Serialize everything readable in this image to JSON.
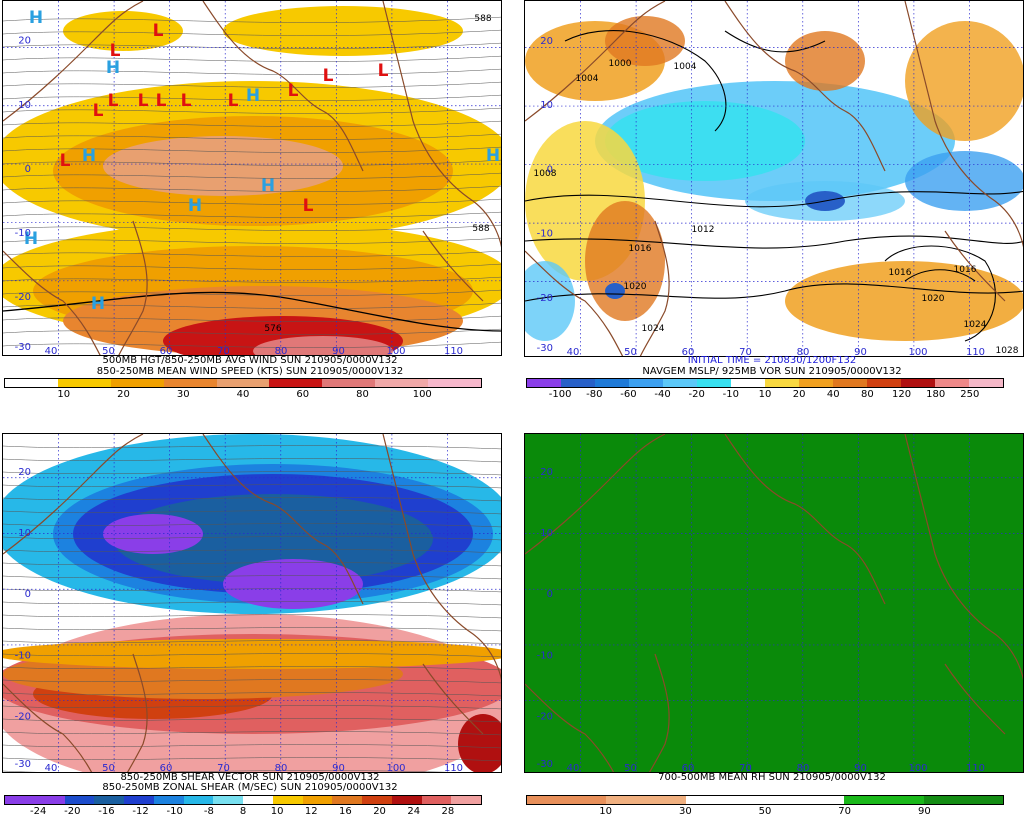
{
  "panels": [
    {
      "id": "p1",
      "caption_lines": [
        "500MB HGT/850-250MB AVG WIND SUN 210905/0000V132",
        "850-250MB MEAN WIND SPEED (KTS) SUN 210905/0000V132"
      ],
      "legend_colors": [
        "#ffffff",
        "#ffffff",
        "#f7c900",
        "#f7c900",
        "#f0a000",
        "#f0a000",
        "#e8852f",
        "#e8852f",
        "#e8a070",
        "#e8a070",
        "#c81414",
        "#c81414",
        "#e07878",
        "#e07878",
        "#f0a8a8",
        "#f0a8a8",
        "#f7b8cc",
        "#f7b8cc"
      ],
      "legend_ticks": [
        "10",
        "20",
        "30",
        "40",
        "60",
        "80",
        "100"
      ],
      "lat_labels": [
        "20",
        "10",
        "0",
        "-10",
        "-20",
        "-30"
      ],
      "lon_labels": [
        "40",
        "50",
        "60",
        "70",
        "80",
        "90",
        "100",
        "110"
      ],
      "contour_labels": [
        "588",
        "588",
        "576"
      ],
      "H_count": 9,
      "L_count": 13,
      "symbols": {
        "H": "H",
        "L": "L"
      }
    },
    {
      "id": "p2",
      "caption_lines": [
        "INITIAL TIME = 210830/1200F132",
        "NAVGEM MSLP/ 925MB VOR SUN 210905/0000V132"
      ],
      "legend_colors": [
        "#8a3ee8",
        "#2860c8",
        "#1f7ad8",
        "#3ca0f0",
        "#5cc8f8",
        "#38e0f0",
        "#ffffff",
        "#f8d840",
        "#f0a020",
        "#e07820",
        "#d04010",
        "#b01010",
        "#ee8888",
        "#f5b8c8"
      ],
      "legend_ticks": [
        "-100",
        "-80",
        "-60",
        "-40",
        "-20",
        "-10",
        "10",
        "20",
        "40",
        "80",
        "120",
        "180",
        "250"
      ],
      "lat_labels": [
        "20",
        "10",
        "0",
        "-10",
        "-20",
        "-30"
      ],
      "lon_labels": [
        "40",
        "50",
        "60",
        "70",
        "80",
        "90",
        "100",
        "110"
      ],
      "contour_labels": [
        "1004",
        "1000",
        "1004",
        "1008",
        "1016",
        "1012",
        "1016",
        "1020",
        "1024",
        "1016",
        "1020",
        "1024",
        "1028"
      ]
    },
    {
      "id": "p3",
      "caption_lines": [
        "850-250MB SHEAR VECTOR SUN 210905/0000V132",
        "850-250MB ZONAL SHEAR (M/SEC) SUN 210905/0000V132"
      ],
      "legend_colors": [
        "#8a3ee8",
        "#8a3ee8",
        "#1c4ccc",
        "#1a5fa0",
        "#1f3fcf",
        "#1c82e0",
        "#27b8e8",
        "#78e0f0",
        "#ffffff",
        "#f7c900",
        "#f0a000",
        "#e07820",
        "#d04010",
        "#b01010",
        "#e06060",
        "#f0a0a0"
      ],
      "legend_ticks": [
        "-24",
        "-20",
        "-16",
        "-12",
        "-10",
        "-8",
        "8",
        "10",
        "12",
        "16",
        "20",
        "24",
        "28"
      ],
      "lat_labels": [
        "20",
        "10",
        "0",
        "-10",
        "-20",
        "-30"
      ],
      "lon_labels": [
        "40",
        "50",
        "60",
        "70",
        "80",
        "90",
        "100",
        "110"
      ]
    },
    {
      "id": "p4",
      "caption_lines": [
        "700-500MB MEAN RH SUN 210905/0000V132"
      ],
      "legend_colors": [
        "#e8905a",
        "#e8905a",
        "#f0b080",
        "#f0b080",
        "#ffffff",
        "#ffffff",
        "#ffffff",
        "#ffffff",
        "#1ab81a",
        "#1ab81a",
        "#138c13",
        "#138c13"
      ],
      "legend_ticks": [
        "10",
        "30",
        "50",
        "70",
        "90"
      ],
      "lat_labels": [
        "20",
        "10",
        "0",
        "-10",
        "-20",
        "-30"
      ],
      "lon_labels": [
        "40",
        "50",
        "60",
        "70",
        "80",
        "90",
        "100",
        "110"
      ],
      "fill_color": "#0a8a0a"
    }
  ]
}
